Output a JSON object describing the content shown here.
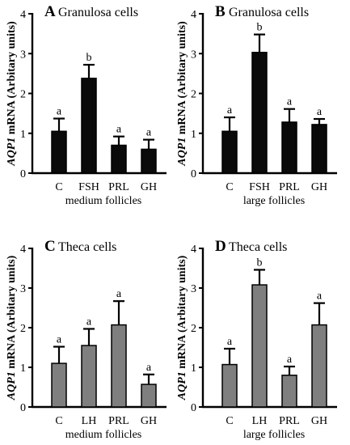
{
  "y_label": {
    "gene": "AQP1",
    "rest": " mRNA (Arbitary units)"
  },
  "chart_data": [
    {
      "type": "bar",
      "letter": "A",
      "title": "Granulosa cells",
      "xlabel": "medium follicles",
      "categories": [
        "C",
        "FSH",
        "PRL",
        "GH"
      ],
      "values": [
        1.05,
        2.38,
        0.7,
        0.6
      ],
      "errors": [
        0.32,
        0.34,
        0.22,
        0.24
      ],
      "significance": [
        "a",
        "b",
        "a",
        "a"
      ],
      "ylim": [
        0,
        4
      ],
      "yticks": [
        0,
        1,
        2,
        3,
        4
      ],
      "bar_color": "#0a0a0a"
    },
    {
      "type": "bar",
      "letter": "B",
      "title": "Granulosa cells",
      "xlabel": "large follicles",
      "categories": [
        "C",
        "FSH",
        "PRL",
        "GH"
      ],
      "values": [
        1.05,
        3.03,
        1.28,
        1.22
      ],
      "errors": [
        0.35,
        0.45,
        0.33,
        0.14
      ],
      "significance": [
        "a",
        "b",
        "a",
        "a"
      ],
      "ylim": [
        0,
        4
      ],
      "yticks": [
        0,
        1,
        2,
        3,
        4
      ],
      "bar_color": "#0a0a0a"
    },
    {
      "type": "bar",
      "letter": "C",
      "title": "Theca cells",
      "xlabel": "medium follicles",
      "categories": [
        "C",
        "LH",
        "PRL",
        "GH"
      ],
      "values": [
        1.1,
        1.55,
        2.07,
        0.57
      ],
      "errors": [
        0.42,
        0.42,
        0.6,
        0.25
      ],
      "significance": [
        "a",
        "a",
        "a",
        "a"
      ],
      "ylim": [
        0,
        4
      ],
      "yticks": [
        0,
        1,
        2,
        3,
        4
      ],
      "bar_color": "#7f7f7f"
    },
    {
      "type": "bar",
      "letter": "D",
      "title": "Theca cells",
      "xlabel": "large follicles",
      "categories": [
        "C",
        "LH",
        "PRL",
        "GH"
      ],
      "values": [
        1.07,
        3.08,
        0.8,
        2.07
      ],
      "errors": [
        0.4,
        0.38,
        0.22,
        0.55
      ],
      "significance": [
        "a",
        "b",
        "a",
        "a"
      ],
      "ylim": [
        0,
        4
      ],
      "yticks": [
        0,
        1,
        2,
        3,
        4
      ],
      "bar_color": "#7f7f7f"
    }
  ]
}
